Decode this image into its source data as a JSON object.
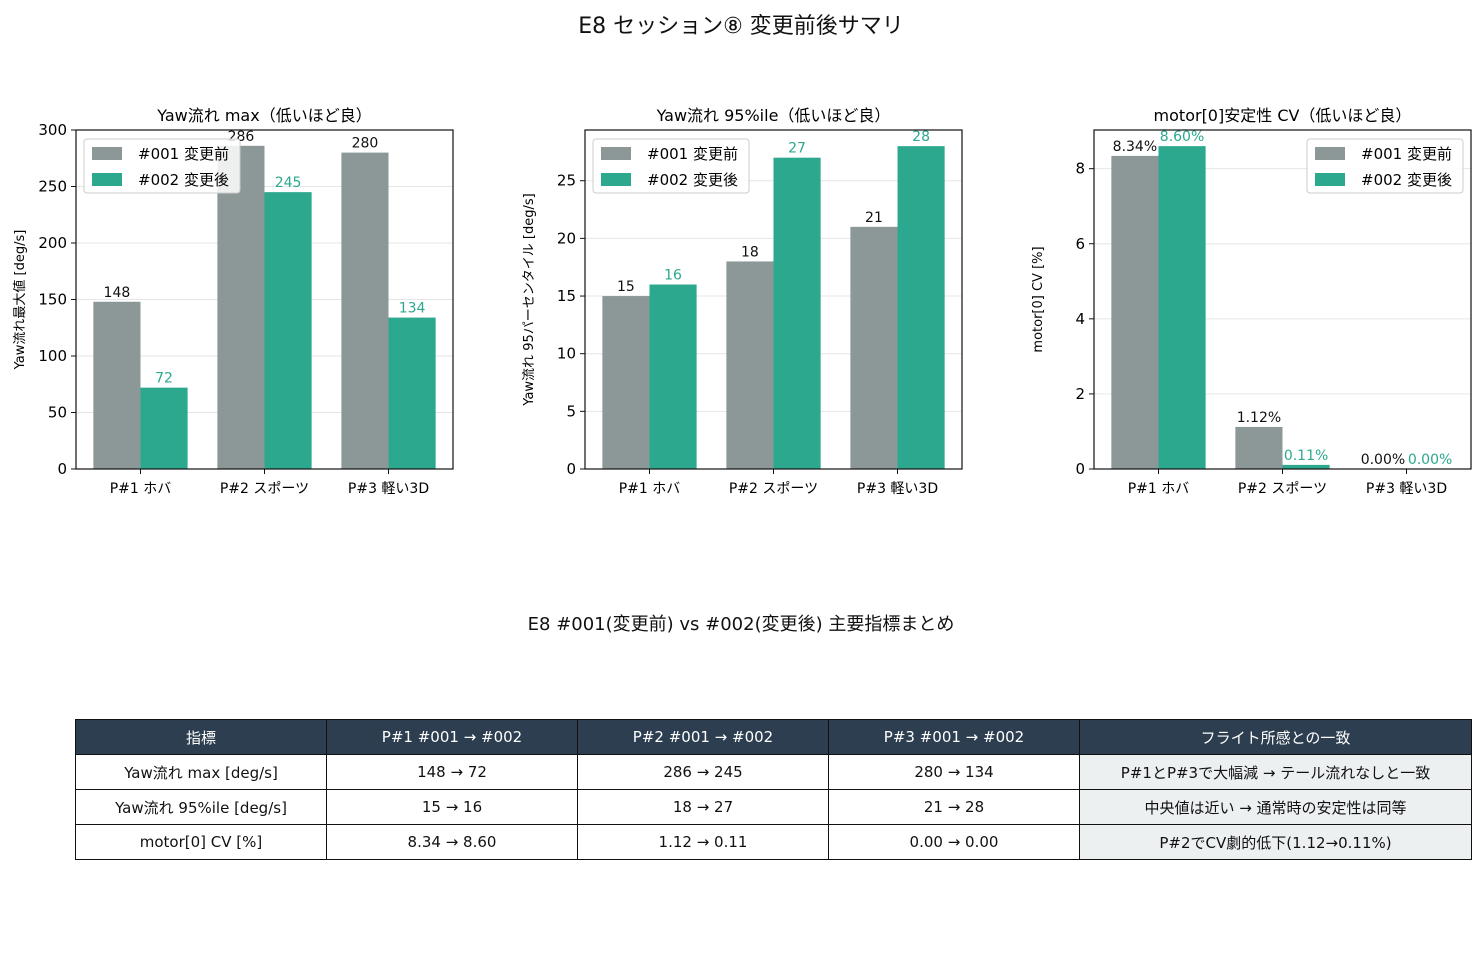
{
  "suptitle": "E8 セッション⑧ 変更前後サマリ",
  "colors": {
    "before": "#8c9798",
    "after": "#2ca88f",
    "header_bg": "#2c3e50",
    "note_bg": "#ecf0f1",
    "grid": "#e6e6e6"
  },
  "chart_data": [
    {
      "type": "bar",
      "title": "Yaw流れ max（低いほど良）",
      "xlabel": "",
      "ylabel": "Yaw流れ最大値 [deg/s]",
      "categories": [
        "P#1 ホバ",
        "P#2 スポーツ",
        "P#3 軽い3D"
      ],
      "series": [
        {
          "name": "#001 変更前",
          "values": [
            148,
            286,
            280
          ],
          "labels": [
            "148",
            "286",
            "280"
          ]
        },
        {
          "name": "#002 変更後",
          "values": [
            72,
            245,
            134
          ],
          "labels": [
            "72",
            "245",
            "134"
          ]
        }
      ],
      "ylim": [
        0,
        300
      ],
      "yticks": [
        0,
        50,
        100,
        150,
        200,
        250,
        300
      ],
      "grid": "y",
      "legend": "upper-left"
    },
    {
      "type": "bar",
      "title": "Yaw流れ 95%ile（低いほど良）",
      "xlabel": "",
      "ylabel": "Yaw流れ 95パーセンタイル [deg/s]",
      "categories": [
        "P#1 ホバ",
        "P#2 スポーツ",
        "P#3 軽い3D"
      ],
      "series": [
        {
          "name": "#001 変更前",
          "values": [
            15,
            18,
            21
          ],
          "labels": [
            "15",
            "18",
            "21"
          ]
        },
        {
          "name": "#002 変更後",
          "values": [
            16,
            27,
            28
          ],
          "labels": [
            "16",
            "27",
            "28"
          ]
        }
      ],
      "ylim": [
        0,
        29.4
      ],
      "yticks": [
        0,
        5,
        10,
        15,
        20,
        25
      ],
      "grid": "y",
      "legend": "upper-left"
    },
    {
      "type": "bar",
      "title": "motor[0]安定性 CV（低いほど良）",
      "xlabel": "",
      "ylabel": "motor[0] CV [%]",
      "categories": [
        "P#1 ホバ",
        "P#2 スポーツ",
        "P#3 軽い3D"
      ],
      "series": [
        {
          "name": "#001 変更前",
          "values": [
            8.34,
            1.12,
            0.0
          ],
          "labels": [
            "8.34%",
            "1.12%",
            "0.00%"
          ]
        },
        {
          "name": "#002 変更後",
          "values": [
            8.6,
            0.11,
            0.0
          ],
          "labels": [
            "8.60%",
            "0.11%",
            "0.00%"
          ]
        }
      ],
      "ylim": [
        0,
        9.03
      ],
      "yticks": [
        0,
        2,
        4,
        6,
        8
      ],
      "grid": "y",
      "legend": "upper-right"
    }
  ],
  "table": {
    "title": "E8 #001(変更前) vs #002(変更後) 主要指標まとめ",
    "headers": [
      "指標",
      "P#1 #001 → #002",
      "P#2 #001 → #002",
      "P#3 #001 → #002",
      "フライト所感との一致"
    ],
    "rows": [
      [
        "Yaw流れ max [deg/s]",
        "148 → 72",
        "286 → 245",
        "280 → 134",
        "P#1とP#3で大幅減 → テール流れなしと一致"
      ],
      [
        "Yaw流れ 95%ile [deg/s]",
        "15 → 16",
        "18 → 27",
        "21 → 28",
        "中央値は近い → 通常時の安定性は同等"
      ],
      [
        "motor[0] CV [%]",
        "8.34 → 8.60",
        "1.12 → 0.11",
        "0.00 → 0.00",
        "P#2でCV劇的低下(1.12→0.11%)"
      ]
    ]
  }
}
